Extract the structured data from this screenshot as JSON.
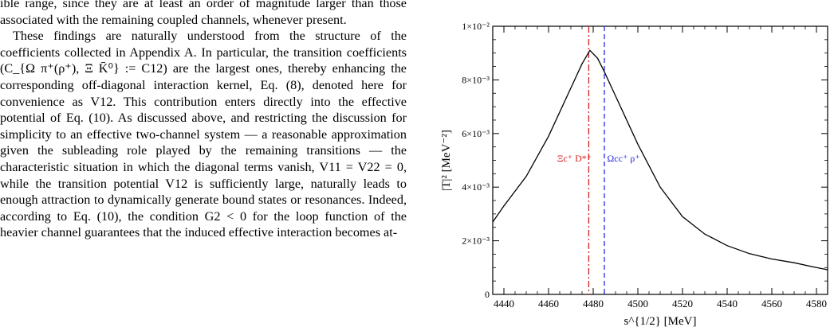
{
  "text": {
    "p1": "ible range, since they are at least an order of magnitude larger than those associated with the remaining coupled channels, whenever present.",
    "p2": "These findings are naturally understood from the structure of the coefficients collected in Appendix A. In particular, the transition coefficients (C_{Ω π⁺(ρ⁺), Ξ K̄⁰} := C12) are the largest ones, thereby enhancing the corresponding off-diagonal interaction kernel, Eq. (8), denoted here for convenience as V12. This contribution enters directly into the effective potential of Eq. (10). As discussed above, and restricting the discussion for simplicity to an effective two-channel system — a reasonable approximation given the subleading role played by the remaining transitions — the characteristic situation in which the diagonal terms vanish, V11 = V22 = 0, while the transition potential V12 is sufficiently large, naturally leads to enough attraction to dynamically generate bound states or resonances. Indeed, according to Eq. (10), the condition G2 < 0 for the loop function of the heavier channel guarantees that the induced effective interaction becomes at-"
  },
  "chart_data": {
    "type": "line",
    "x": [
      4435,
      4440,
      4450,
      4460,
      4470,
      4475,
      4478.5,
      4482,
      4485,
      4490,
      4500,
      4510,
      4520,
      4530,
      4540,
      4550,
      4560,
      4570,
      4580,
      4585
    ],
    "y": [
      0.0027,
      0.0033,
      0.0044,
      0.0059,
      0.0077,
      0.0086,
      0.0091,
      0.0088,
      0.0083,
      0.0074,
      0.0056,
      0.004,
      0.0029,
      0.00225,
      0.00182,
      0.00152,
      0.00132,
      0.00118,
      0.001,
      0.00092
    ],
    "xlim": [
      4435,
      4585
    ],
    "ylim": [
      0,
      0.01
    ],
    "xticks": [
      4440,
      4460,
      4480,
      4500,
      4520,
      4540,
      4560,
      4580
    ],
    "xtick_labels": [
      "4440",
      "4460",
      "4480",
      "4500",
      "4520",
      "4540",
      "4560",
      "4580"
    ],
    "yticks": [
      0,
      0.002,
      0.004,
      0.006,
      0.008,
      0.01
    ],
    "ytick_labels": [
      "0",
      "2×10⁻³",
      "4×10⁻³",
      "6×10⁻³",
      "8×10⁻³",
      "1×10⁻²"
    ],
    "xlabel": "s^{1/2} [MeV]",
    "ylabel": "|T|² [MeV⁻²]",
    "thresholds": [
      {
        "x": 4478,
        "label": "Ξc⁺ D*⁺",
        "color": "#d42020",
        "style": "dash-dot"
      },
      {
        "x": 4485,
        "label": "Ωcc⁺ ρ⁺",
        "color": "#2a2adf",
        "style": "dash"
      }
    ],
    "line_color": "#000000",
    "grid": false
  }
}
